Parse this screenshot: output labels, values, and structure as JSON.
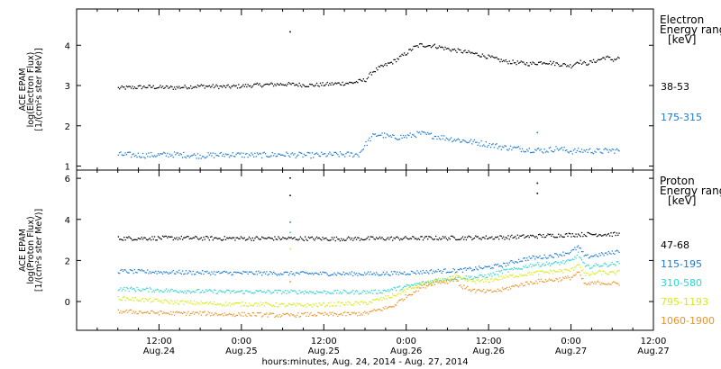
{
  "colors": {
    "black": "#000000",
    "blue": "#1c7ad6",
    "cyan": "#2ad6cf",
    "yellow": "#d7ec10",
    "orange": "#ef9224"
  },
  "chart_data": [
    {
      "type": "scatter",
      "panel": "top",
      "ylabel": [
        "ACE EPAM",
        "log(Electron Flux)",
        "[1/(cm²s ster MeV)]"
      ],
      "ylim": [
        0.9,
        4.9
      ],
      "yticks": [
        1,
        2,
        3,
        4
      ],
      "xlim": [
        0,
        84
      ],
      "xaxis_origin": "Aug 24 2014 00:00 (hours)",
      "legend_title": [
        "Electron",
        "Energy ranges",
        "[keV]"
      ],
      "legend_placement": "right",
      "series": [
        {
          "name": "38-53",
          "color": "black",
          "points": [
            [
              6,
              2.95
            ],
            [
              10,
              2.98
            ],
            [
              14,
              2.96
            ],
            [
              18,
              3.0
            ],
            [
              22,
              2.98
            ],
            [
              26,
              3.02
            ],
            [
              30,
              3.05
            ],
            [
              34,
              3.02
            ],
            [
              38,
              3.06
            ],
            [
              40,
              3.08
            ],
            [
              42,
              3.15
            ],
            [
              43,
              3.35
            ],
            [
              44,
              3.45
            ],
            [
              46,
              3.6
            ],
            [
              48,
              3.82
            ],
            [
              49,
              3.95
            ],
            [
              50,
              4.02
            ],
            [
              52,
              4.0
            ],
            [
              54,
              3.92
            ],
            [
              56,
              3.86
            ],
            [
              58,
              3.8
            ],
            [
              60,
              3.72
            ],
            [
              62,
              3.62
            ],
            [
              64,
              3.58
            ],
            [
              66,
              3.55
            ],
            [
              68,
              3.6
            ],
            [
              70,
              3.55
            ],
            [
              72,
              3.5
            ],
            [
              73,
              3.62
            ],
            [
              74,
              3.55
            ],
            [
              76,
              3.65
            ],
            [
              77,
              3.72
            ],
            [
              78,
              3.65
            ],
            [
              79,
              3.7
            ]
          ],
          "outliers": [
            [
              31,
              4.35
            ]
          ]
        },
        {
          "name": "175-315",
          "color": "blue",
          "points": [
            [
              6,
              1.3
            ],
            [
              10,
              1.28
            ],
            [
              14,
              1.3
            ],
            [
              18,
              1.27
            ],
            [
              22,
              1.3
            ],
            [
              26,
              1.28
            ],
            [
              30,
              1.3
            ],
            [
              34,
              1.28
            ],
            [
              38,
              1.3
            ],
            [
              41,
              1.3
            ],
            [
              42,
              1.55
            ],
            [
              43,
              1.75
            ],
            [
              44,
              1.8
            ],
            [
              46,
              1.72
            ],
            [
              48,
              1.75
            ],
            [
              50,
              1.82
            ],
            [
              52,
              1.76
            ],
            [
              54,
              1.7
            ],
            [
              56,
              1.65
            ],
            [
              58,
              1.6
            ],
            [
              60,
              1.55
            ],
            [
              62,
              1.48
            ],
            [
              64,
              1.45
            ],
            [
              66,
              1.42
            ],
            [
              68,
              1.4
            ],
            [
              70,
              1.45
            ],
            [
              72,
              1.38
            ],
            [
              74,
              1.4
            ],
            [
              76,
              1.38
            ],
            [
              78,
              1.4
            ],
            [
              79,
              1.4
            ]
          ],
          "outliers": [
            [
              67,
              1.85
            ]
          ]
        }
      ]
    },
    {
      "type": "scatter",
      "panel": "bottom",
      "ylabel": [
        "ACE EPAM",
        "log(Proton Flux)",
        "[1/(cm²s ster MeV)]"
      ],
      "ylim": [
        -1.4,
        6.4
      ],
      "yticks": [
        0,
        2,
        4,
        6
      ],
      "xlim": [
        0,
        84
      ],
      "xaxis_origin": "Aug 24 2014 00:00 (hours)",
      "xticks": [
        {
          "h": 12,
          "time": "12:00",
          "date": "Aug.24"
        },
        {
          "h": 24,
          "time": "0:00",
          "date": "Aug.25"
        },
        {
          "h": 36,
          "time": "12:00",
          "date": "Aug.25"
        },
        {
          "h": 48,
          "time": "0:00",
          "date": "Aug.26"
        },
        {
          "h": 60,
          "time": "12:00",
          "date": "Aug.26"
        },
        {
          "h": 72,
          "time": "0:00",
          "date": "Aug.27"
        },
        {
          "h": 84,
          "time": "12:00",
          "date": "Aug.27"
        }
      ],
      "xlabel": "hours:minutes, Aug. 24, 2014 - Aug. 27, 2014",
      "legend_title": [
        "Proton",
        "Energy ranges",
        "[keV]"
      ],
      "legend_placement": "right",
      "series": [
        {
          "name": "47-68",
          "color": "black",
          "points": [
            [
              6,
              3.1
            ],
            [
              14,
              3.12
            ],
            [
              22,
              3.1
            ],
            [
              30,
              3.1
            ],
            [
              38,
              3.08
            ],
            [
              46,
              3.1
            ],
            [
              54,
              3.12
            ],
            [
              62,
              3.15
            ],
            [
              66,
              3.2
            ],
            [
              70,
              3.25
            ],
            [
              74,
              3.3
            ],
            [
              79,
              3.3
            ]
          ],
          "outliers": [
            [
              31,
              6.05
            ],
            [
              31,
              5.2
            ],
            [
              67,
              5.8
            ],
            [
              67,
              5.3
            ]
          ]
        },
        {
          "name": "115-195",
          "color": "blue",
          "points": [
            [
              6,
              1.5
            ],
            [
              14,
              1.45
            ],
            [
              22,
              1.42
            ],
            [
              30,
              1.4
            ],
            [
              38,
              1.38
            ],
            [
              44,
              1.38
            ],
            [
              48,
              1.42
            ],
            [
              52,
              1.5
            ],
            [
              56,
              1.55
            ],
            [
              60,
              1.7
            ],
            [
              62,
              1.8
            ],
            [
              64,
              2.0
            ],
            [
              66,
              2.15
            ],
            [
              68,
              2.2
            ],
            [
              70,
              2.3
            ],
            [
              72,
              2.45
            ],
            [
              73,
              2.7
            ],
            [
              74,
              2.2
            ],
            [
              76,
              2.3
            ],
            [
              78,
              2.4
            ],
            [
              79,
              2.5
            ]
          ],
          "outliers": [
            [
              31,
              3.9
            ]
          ]
        },
        {
          "name": "310-580",
          "color": "cyan",
          "points": [
            [
              6,
              0.65
            ],
            [
              14,
              0.55
            ],
            [
              22,
              0.5
            ],
            [
              30,
              0.5
            ],
            [
              38,
              0.48
            ],
            [
              44,
              0.5
            ],
            [
              48,
              0.75
            ],
            [
              50,
              0.9
            ],
            [
              52,
              1.05
            ],
            [
              54,
              1.15
            ],
            [
              56,
              1.2
            ],
            [
              58,
              1.2
            ],
            [
              60,
              1.3
            ],
            [
              62,
              1.5
            ],
            [
              64,
              1.6
            ],
            [
              66,
              1.8
            ],
            [
              68,
              1.85
            ],
            [
              70,
              1.9
            ],
            [
              72,
              2.0
            ],
            [
              73,
              2.35
            ],
            [
              74,
              1.7
            ],
            [
              76,
              1.8
            ],
            [
              78,
              1.85
            ],
            [
              79,
              1.9
            ]
          ],
          "outliers": [
            [
              31,
              3.4
            ]
          ]
        },
        {
          "name": "795-1193",
          "color": "yellow",
          "points": [
            [
              6,
              0.2
            ],
            [
              10,
              0.1
            ],
            [
              14,
              0.0
            ],
            [
              18,
              -0.05
            ],
            [
              22,
              -0.1
            ],
            [
              26,
              -0.1
            ],
            [
              30,
              -0.15
            ],
            [
              34,
              -0.15
            ],
            [
              38,
              -0.1
            ],
            [
              42,
              -0.05
            ],
            [
              46,
              0.3
            ],
            [
              48,
              0.6
            ],
            [
              50,
              0.85
            ],
            [
              52,
              1.0
            ],
            [
              54,
              1.1
            ],
            [
              55,
              1.3
            ],
            [
              56,
              1.1
            ],
            [
              58,
              1.0
            ],
            [
              60,
              1.05
            ],
            [
              62,
              1.2
            ],
            [
              64,
              1.3
            ],
            [
              66,
              1.4
            ],
            [
              68,
              1.45
            ],
            [
              70,
              1.5
            ],
            [
              72,
              1.55
            ],
            [
              73,
              1.9
            ],
            [
              74,
              1.3
            ],
            [
              76,
              1.45
            ],
            [
              78,
              1.4
            ],
            [
              79,
              1.45
            ]
          ],
          "outliers": [
            [
              31,
              2.6
            ]
          ]
        },
        {
          "name": "1060-1900",
          "color": "orange",
          "points": [
            [
              6,
              -0.45
            ],
            [
              10,
              -0.5
            ],
            [
              14,
              -0.55
            ],
            [
              18,
              -0.55
            ],
            [
              22,
              -0.6
            ],
            [
              26,
              -0.6
            ],
            [
              30,
              -0.65
            ],
            [
              34,
              -0.6
            ],
            [
              38,
              -0.6
            ],
            [
              42,
              -0.55
            ],
            [
              46,
              -0.2
            ],
            [
              48,
              0.3
            ],
            [
              50,
              0.7
            ],
            [
              52,
              0.95
            ],
            [
              54,
              1.0
            ],
            [
              55,
              1.15
            ],
            [
              56,
              0.75
            ],
            [
              58,
              0.55
            ],
            [
              60,
              0.5
            ],
            [
              62,
              0.6
            ],
            [
              64,
              0.8
            ],
            [
              66,
              0.95
            ],
            [
              68,
              1.05
            ],
            [
              70,
              1.1
            ],
            [
              72,
              1.2
            ],
            [
              73,
              1.45
            ],
            [
              74,
              0.85
            ],
            [
              76,
              0.95
            ],
            [
              78,
              0.9
            ],
            [
              79,
              0.9
            ]
          ],
          "outliers": [
            [
              31,
              1.0
            ]
          ]
        }
      ]
    }
  ]
}
